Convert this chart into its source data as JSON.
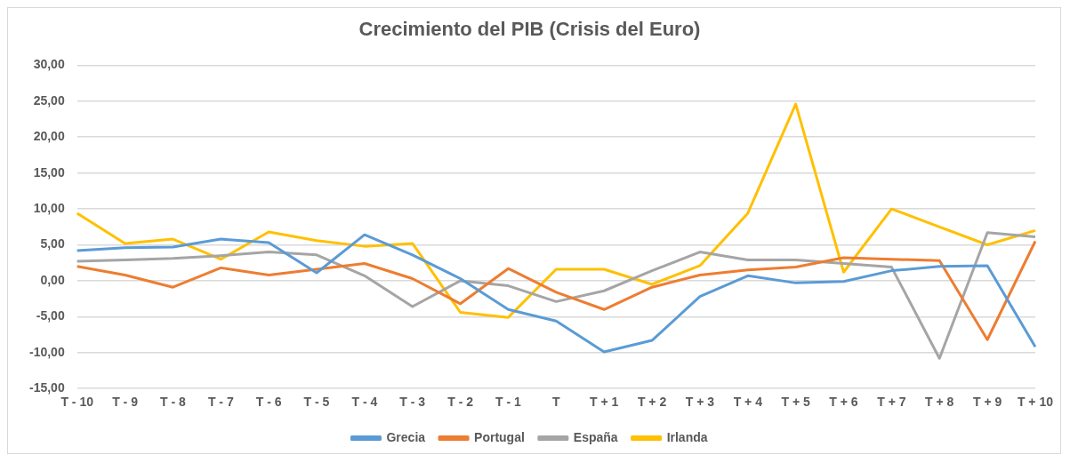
{
  "chart_data": {
    "type": "line",
    "title": "Crecimiento del PIB (Crisis del Euro)",
    "categories": [
      "T - 10",
      "T - 9",
      "T - 8",
      "T - 7",
      "T - 6",
      "T - 5",
      "T - 4",
      "T - 3",
      "T - 2",
      "T - 1",
      "T",
      "T + 1",
      "T + 2",
      "T + 3",
      "T + 4",
      "T + 5",
      "T + 6",
      "T + 7",
      "T + 8",
      "T + 9",
      "T + 10"
    ],
    "series": [
      {
        "name": "Grecia",
        "color": "#5b9bd5",
        "values": [
          4.2,
          4.6,
          4.7,
          5.8,
          5.3,
          1.1,
          6.4,
          3.6,
          0.3,
          -4.0,
          -5.6,
          -9.9,
          -8.3,
          -2.2,
          0.7,
          -0.3,
          -0.1,
          1.4,
          2.0,
          2.1,
          -9.2
        ]
      },
      {
        "name": "Portugal",
        "color": "#ed7d31",
        "values": [
          2.0,
          0.8,
          -0.9,
          1.8,
          0.8,
          1.6,
          2.4,
          0.3,
          -3.2,
          1.7,
          -1.6,
          -4.0,
          -0.9,
          0.8,
          1.5,
          1.9,
          3.2,
          3.0,
          2.8,
          -8.2,
          5.5
        ]
      },
      {
        "name": "España",
        "color": "#a5a5a5",
        "values": [
          2.7,
          2.9,
          3.1,
          3.5,
          4.0,
          3.6,
          0.7,
          -3.6,
          0.0,
          -0.7,
          -2.9,
          -1.4,
          1.4,
          4.0,
          2.9,
          2.9,
          2.4,
          1.9,
          -10.8,
          6.7,
          6.1
        ]
      },
      {
        "name": "Irlanda",
        "color": "#ffc000",
        "values": [
          9.4,
          5.2,
          5.8,
          3.0,
          6.8,
          5.6,
          4.8,
          5.2,
          -4.4,
          -5.1,
          1.6,
          1.6,
          -0.5,
          2.1,
          9.4,
          24.6,
          1.2,
          10.0,
          7.5,
          5.0,
          7.0
        ]
      }
    ],
    "ylim": [
      -15,
      30
    ],
    "yticks": [
      {
        "value": -15,
        "label": "-15,00"
      },
      {
        "value": -10,
        "label": "-10,00"
      },
      {
        "value": -5,
        "label": "-5,00"
      },
      {
        "value": 0,
        "label": "0,00"
      },
      {
        "value": 5,
        "label": "5,00"
      },
      {
        "value": 10,
        "label": "10,00"
      },
      {
        "value": 15,
        "label": "15,00"
      },
      {
        "value": 20,
        "label": "20,00"
      },
      {
        "value": 25,
        "label": "25,00"
      },
      {
        "value": 30,
        "label": "30,00"
      }
    ],
    "grid": "y",
    "legend": "bottom",
    "marker": "none",
    "line_style": "solid"
  }
}
